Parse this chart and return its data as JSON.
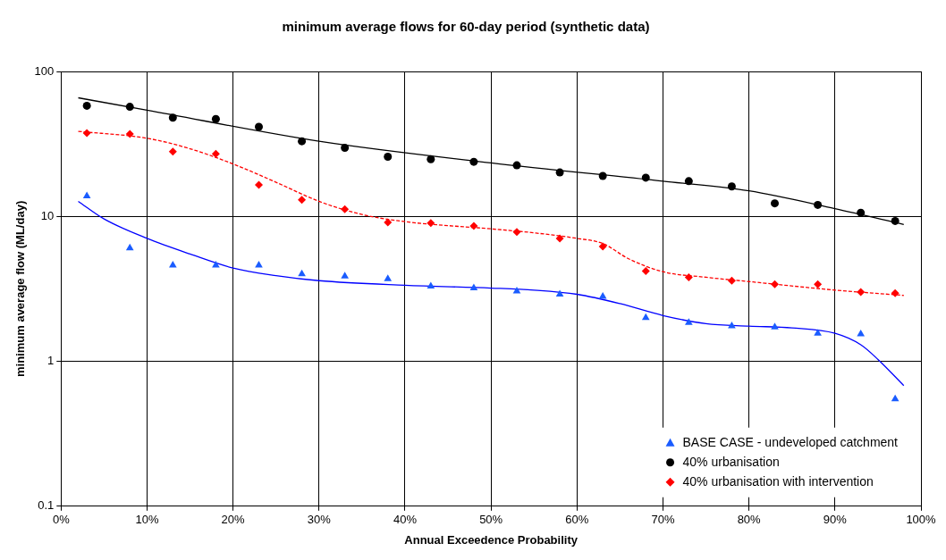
{
  "chart_data": {
    "type": "scatter",
    "title": "minimum average flows for 60-day period (synthetic data)",
    "xlabel": "Annual Exceedence Probability",
    "ylabel": "minimum average flow (ML/day)",
    "x": [
      3,
      8,
      13,
      18,
      23,
      28,
      33,
      38,
      43,
      48,
      53,
      58,
      63,
      68,
      73,
      78,
      83,
      88,
      93,
      97
    ],
    "xlim": [
      0,
      100
    ],
    "xticks": [
      {
        "value": 0,
        "label": "0%"
      },
      {
        "value": 10,
        "label": "10%"
      },
      {
        "value": 20,
        "label": "20%"
      },
      {
        "value": 30,
        "label": "30%"
      },
      {
        "value": 40,
        "label": "40%"
      },
      {
        "value": 50,
        "label": "50%"
      },
      {
        "value": 60,
        "label": "60%"
      },
      {
        "value": 70,
        "label": "70%"
      },
      {
        "value": 80,
        "label": "80%"
      },
      {
        "value": 90,
        "label": "90%"
      },
      {
        "value": 100,
        "label": "100%"
      }
    ],
    "ylim": [
      0.1,
      100
    ],
    "yticks": [
      0.1,
      1,
      10,
      100
    ],
    "log": "y",
    "grid": true,
    "legend": "bottom right",
    "series": [
      {
        "name": "BASE CASE - undeveloped catchment",
        "type": "scatter",
        "marker": "triangle",
        "color": "#1a5cff",
        "values": [
          13.8,
          6.05,
          4.6,
          4.6,
          4.6,
          4.0,
          3.87,
          3.7,
          3.3,
          3.2,
          3.05,
          2.9,
          2.8,
          2.0,
          1.85,
          1.75,
          1.72,
          1.56,
          1.54,
          0.55
        ]
      },
      {
        "name": "40% urbanisation",
        "type": "scatter",
        "marker": "circle",
        "color": "#000000",
        "values": [
          58,
          57,
          48,
          47,
          41.5,
          33,
          29.7,
          25.8,
          24.8,
          23.8,
          22.5,
          20.1,
          19,
          18.5,
          17.5,
          16.1,
          12.3,
          12,
          10.6,
          9.3
        ]
      },
      {
        "name": "40% urbanisation with intervention",
        "type": "scatter",
        "marker": "diamond",
        "color": "#ff0000",
        "values": [
          37.6,
          37,
          28,
          27,
          16.5,
          13,
          11.2,
          9.1,
          9,
          8.6,
          7.8,
          7.05,
          6.2,
          4.2,
          3.8,
          3.6,
          3.4,
          3.4,
          3.0,
          2.95
        ]
      },
      {
        "type": "line",
        "marker": "none",
        "line_style": "solid",
        "color": "#0000ff",
        "x": [
          2,
          5,
          10,
          15,
          20,
          25,
          30,
          40,
          50,
          55,
          60,
          65,
          70,
          75,
          80,
          85,
          90,
          93,
          95,
          98
        ],
        "values": [
          12.7,
          9.6,
          7.05,
          5.5,
          4.4,
          3.9,
          3.6,
          3.35,
          3.2,
          3.1,
          2.9,
          2.5,
          2.07,
          1.82,
          1.75,
          1.7,
          1.56,
          1.3,
          1.03,
          0.68
        ]
      },
      {
        "type": "line",
        "marker": "none",
        "line_style": "solid",
        "color": "#000000",
        "x": [
          2,
          10,
          30,
          50,
          70,
          80,
          90,
          98
        ],
        "values": [
          65.8,
          54,
          33,
          23.4,
          17.5,
          15,
          11.3,
          8.8
        ]
      },
      {
        "type": "line",
        "marker": "none",
        "line_style": "dashed",
        "color": "#ff0000",
        "x": [
          2,
          10,
          15,
          20,
          25,
          30,
          35,
          40,
          50,
          55,
          60,
          63,
          66,
          70,
          75,
          80,
          90,
          98
        ],
        "values": [
          38.6,
          34.6,
          29.3,
          23,
          17.2,
          12.7,
          10.3,
          9.2,
          8.2,
          7.7,
          7.05,
          6.5,
          5.1,
          4.15,
          3.8,
          3.55,
          3.1,
          2.85
        ]
      }
    ]
  }
}
